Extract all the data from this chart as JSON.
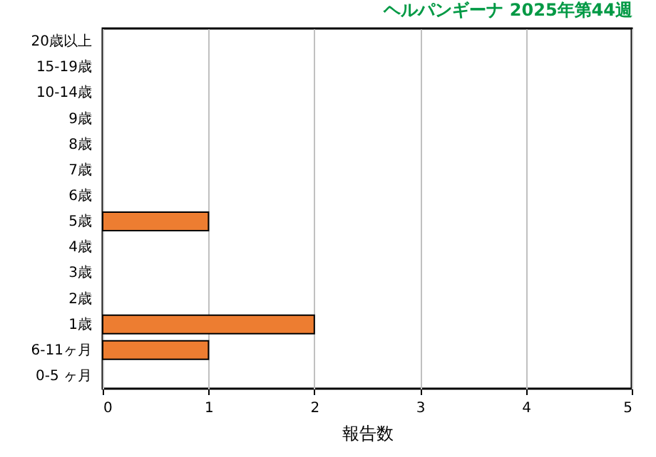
{
  "chart_data": {
    "type": "bar",
    "orientation": "horizontal",
    "title": "ヘルパンギーナ 2025年第44週",
    "xlabel": "報告数",
    "categories": [
      "20歳以上",
      "15-19歳",
      "10-14歳",
      "9歳",
      "8歳",
      "7歳",
      "6歳",
      "5歳",
      "4歳",
      "3歳",
      "2歳",
      "1歳",
      "6-11ヶ月",
      "0-5 ヶ月"
    ],
    "values": [
      0,
      0,
      0,
      0,
      0,
      0,
      0,
      1,
      0,
      0,
      0,
      2,
      1,
      0
    ],
    "color": "#ed7d31",
    "xlim": [
      0,
      5
    ],
    "xticks": [
      0,
      1,
      2,
      3,
      4,
      5
    ],
    "grid": "x"
  }
}
